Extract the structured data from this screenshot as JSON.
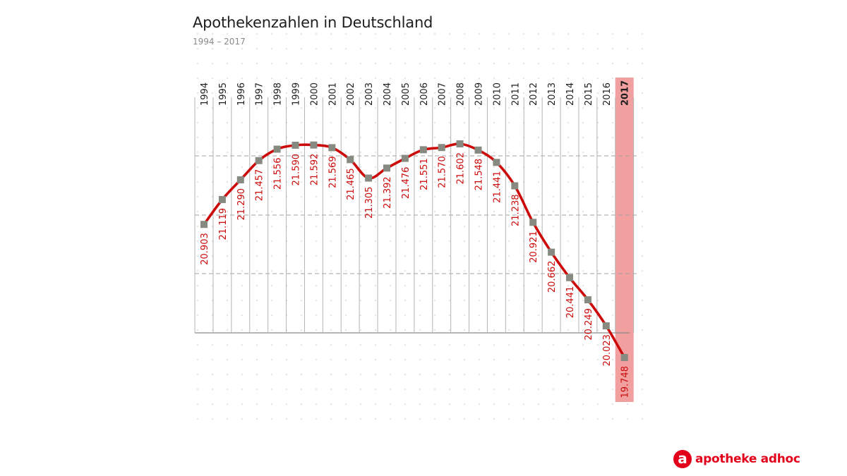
{
  "header": {
    "title": "Apothekenzahlen in Deutschland",
    "subtitle": "1994 – 2017"
  },
  "brand": {
    "logo_letter": "a",
    "logo_text": "apotheke adhoc"
  },
  "colors": {
    "line": "#cc0a0a",
    "marker": "#878a80",
    "label": "#cc0a0a",
    "highlight": "#f29f9f",
    "brand": "#e2001a"
  },
  "chart_data": {
    "type": "line",
    "x": [
      "1994",
      "1995",
      "1996",
      "1997",
      "1998",
      "1999",
      "2000",
      "2001",
      "2002",
      "2003",
      "2004",
      "2005",
      "2006",
      "2007",
      "2008",
      "2009",
      "2010",
      "2011",
      "2012",
      "2013",
      "2014",
      "2015",
      "2016",
      "2017"
    ],
    "values": [
      20903,
      21119,
      21290,
      21457,
      21556,
      21590,
      21592,
      21569,
      21465,
      21305,
      21392,
      21476,
      21551,
      21570,
      21602,
      21548,
      21441,
      21238,
      20921,
      20662,
      20441,
      20249,
      20023,
      19748
    ],
    "value_labels": [
      "20.903",
      "21.119",
      "21.290",
      "21.457",
      "21.556",
      "21.590",
      "21.592",
      "21.569",
      "21.465",
      "21.305",
      "21.392",
      "21.476",
      "21.551",
      "21.570",
      "21.602",
      "21.548",
      "21.441",
      "21.238",
      "20.921",
      "20.662",
      "20.441",
      "20.249",
      "20.023",
      "19.748"
    ],
    "highlight_category": "2017",
    "ylim": [
      19700,
      21700
    ],
    "grid": true,
    "legend": "none"
  }
}
